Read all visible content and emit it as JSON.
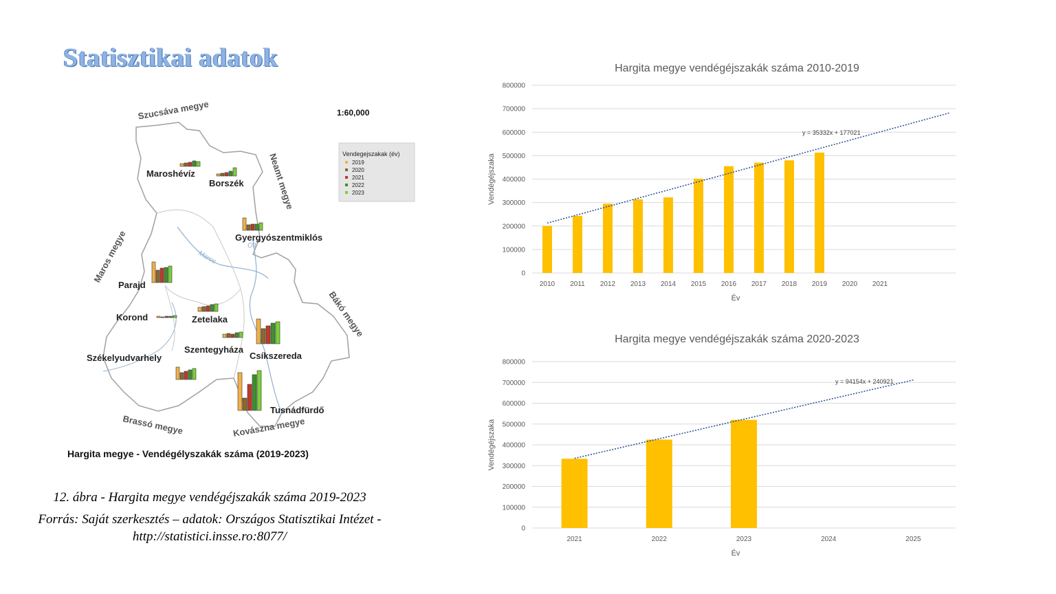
{
  "slide": {
    "title": "Statisztikai adatok"
  },
  "map": {
    "scale": "1:60,000",
    "legend_title": "Vendegejszakak (év)",
    "legend_years": [
      "2019",
      "2020",
      "2021",
      "2022",
      "2023"
    ],
    "legend_colors": [
      "#f0b14a",
      "#8b6a2c",
      "#c0392b",
      "#3f8f2f",
      "#7ccf3a"
    ],
    "neighbors": [
      "Szucsáva megye",
      "Neamt megye",
      "Maros megye",
      "Bákó megye",
      "Brassó megye",
      "Kovászna megye"
    ],
    "rivers": [
      "Maros",
      "Olt"
    ],
    "towns": [
      "Maroshévíz",
      "Borszék",
      "Gyergyószentmiklós",
      "Parajd",
      "Korond",
      "Zetelaka",
      "Szentegyháza",
      "Csíkszereda",
      "Székelyudvarhely",
      "Tusnádfürdő"
    ],
    "caption": "Hargita megye - Vendégélyszakák száma (2019-2023)"
  },
  "caption": {
    "line1": "12. ábra - Hargita megye vendégéjszakák száma 2019-2023",
    "line2": "Forrás: Saját szerkesztés – adatok: Országos Statisztikai Intézet -",
    "line3": "http://statistici.insse.ro:8077/"
  },
  "chart_data": [
    {
      "type": "bar",
      "title": "Hargita megye vendégéjszakák száma 2010-2019",
      "xlabel": "Év",
      "ylabel": "Vendégéjszaka",
      "categories": [
        "2010",
        "2011",
        "2012",
        "2013",
        "2014",
        "2015",
        "2016",
        "2017",
        "2018",
        "2019",
        "2020",
        "2021"
      ],
      "values": [
        200000,
        243000,
        295000,
        314000,
        322000,
        402000,
        455000,
        470000,
        480000,
        513000,
        null,
        null
      ],
      "ylim": [
        0,
        800000
      ],
      "yticks": [
        0,
        100000,
        200000,
        300000,
        400000,
        500000,
        600000,
        700000,
        800000
      ],
      "trendline_label": "y = 35332x + 177021",
      "trendline": {
        "slope": 35332,
        "intercept": 177021
      },
      "bar_color": "#ffc000",
      "trend_color": "#2f5597",
      "grid": true
    },
    {
      "type": "bar",
      "title": "Hargita megye vendégéjszakák száma 2020-2023",
      "xlabel": "Év",
      "ylabel": "Vendégéjszaka",
      "categories": [
        "2021",
        "2022",
        "2023",
        "2024",
        "2025"
      ],
      "values": [
        333000,
        425000,
        520000,
        null,
        null
      ],
      "ylim": [
        0,
        800000
      ],
      "yticks": [
        0,
        100000,
        200000,
        300000,
        400000,
        500000,
        600000,
        700000,
        800000
      ],
      "trendline_label": "y = 94154x + 240921",
      "trendline": {
        "slope": 94154,
        "intercept": 240921
      },
      "bar_color": "#ffc000",
      "trend_color": "#2f5597",
      "grid": true
    }
  ]
}
